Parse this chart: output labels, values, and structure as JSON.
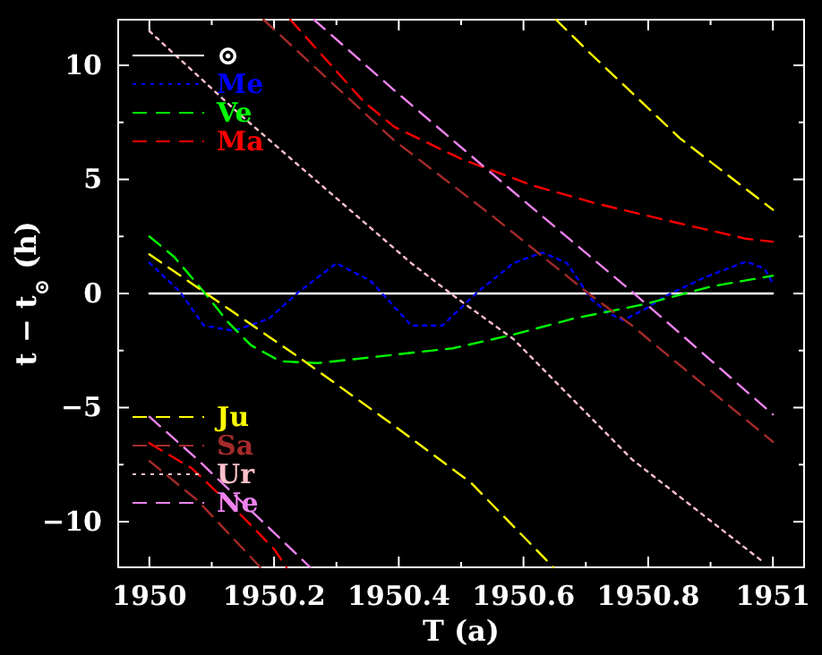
{
  "chart_data": {
    "type": "line",
    "xlabel": "T (a)",
    "ylabel": "t − t$_{⊙}$ (h)",
    "xlim": [
      1949.95,
      1951.05
    ],
    "ylim": [
      -12,
      12
    ],
    "xticks": [
      1950,
      {
        "value": 1950.1,
        "label": null
      },
      1950.2,
      {
        "value": 1950.3,
        "label": null
      },
      1950.4,
      {
        "value": 1950.5,
        "label": null
      },
      1950.6,
      {
        "value": 1950.7,
        "label": null
      },
      1950.8,
      {
        "value": 1950.9,
        "label": null
      },
      1951
    ],
    "yticks": [
      -10,
      {
        "value": -7.5,
        "label": null
      },
      -5,
      {
        "value": -2.5,
        "label": null
      },
      0,
      {
        "value": 2.5,
        "label": null
      },
      5,
      {
        "value": 7.5,
        "label": null
      },
      10
    ],
    "legend": "left",
    "grid": false,
    "series": [
      {
        "name": "⊙",
        "color": "#ffffff",
        "line_style": "solid",
        "x": [
          1950,
          1951
        ],
        "values": [
          0,
          0
        ]
      },
      {
        "name": "Me",
        "color": "#0000ff",
        "line_style": "dotted",
        "x": [
          1950,
          1950.049,
          1950.087,
          1950.135,
          1950.192,
          1950.24,
          1950.3,
          1950.355,
          1950.42,
          1950.47,
          1950.527,
          1950.584,
          1950.63,
          1950.67,
          1950.708,
          1950.736,
          1950.76,
          1950.794,
          1950.83,
          1950.89,
          1950.957,
          1950.986,
          1951
        ],
        "values": [
          1.35,
          0.08,
          -1.4,
          -1.64,
          -1.1,
          0.08,
          1.33,
          0.55,
          -1.4,
          -1.4,
          0.08,
          1.33,
          1.8,
          1.33,
          -0.23,
          -0.86,
          -1.17,
          -0.7,
          -0.08,
          0.7,
          1.4,
          1.1,
          0.45
        ]
      },
      {
        "name": "Ve",
        "color": "#00ff00",
        "line_style": "dashed",
        "x": [
          1950,
          1950.04,
          1950.087,
          1950.126,
          1950.163,
          1950.21,
          1950.27,
          1950.355,
          1950.42,
          1950.487,
          1950.584,
          1950.68,
          1950.794,
          1950.9,
          1951
        ],
        "values": [
          2.5,
          1.6,
          0.08,
          -1.25,
          -2.27,
          -2.97,
          -3.05,
          -2.8,
          -2.6,
          -2.4,
          -1.8,
          -1.1,
          -0.47,
          0.3,
          0.78
        ]
      },
      {
        "name": "Ma",
        "color": "#ff0000",
        "line_style": "dashed",
        "x": [
          1950,
          1950.068,
          1950.143,
          1950.2,
          1950.22,
          1950.223,
          1950.226,
          1950.344,
          1950.393,
          1950.5,
          1950.613,
          1950.716,
          1950.83,
          1950.957,
          1951
        ],
        "values": [
          -6.56,
          -7.66,
          -9.6,
          -11.2,
          -12,
          null,
          12,
          8.4,
          7.3,
          5.9,
          4.75,
          3.95,
          3.2,
          2.4,
          2.27
        ]
      },
      {
        "name": "Ju",
        "color": "#ffff00",
        "line_style": "dashed",
        "x": [
          1950,
          1950.087,
          1950.192,
          1950.24,
          1950.393,
          1950.516,
          1950.648,
          1950.65,
          1950.652,
          1950.708,
          1950.851,
          1951
        ],
        "values": [
          1.72,
          0.08,
          -1.9,
          -2.8,
          -5.8,
          -8.3,
          -12,
          null,
          12,
          10.5,
          6.8,
          3.67
        ]
      },
      {
        "name": "Sa",
        "color": "#a52a2a",
        "line_style": "dashed",
        "x": [
          1950,
          1950.077,
          1950.178,
          1950.18,
          1950.183,
          1950.393,
          1950.55,
          1950.708,
          1950.774,
          1950.8,
          1951
        ],
        "values": [
          -7.34,
          -9.06,
          -12,
          null,
          12,
          6.7,
          3.4,
          -0.08,
          -1.4,
          -2,
          -6.5
        ]
      },
      {
        "name": "Ur",
        "color": "#ffc0cb",
        "line_style": "dotted",
        "x": [
          1950,
          1950.143,
          1950.42,
          1950.487,
          1950.584,
          1950.774,
          1950.986
        ],
        "values": [
          11.5,
          7.9,
          1.33,
          -0.08,
          -2,
          -7.27,
          -11.8
        ]
      },
      {
        "name": "Ne",
        "color": "#ee82ee",
        "line_style": "dashed",
        "x": [
          1950,
          1950.077,
          1950.258,
          1950.261,
          1950.264,
          1950.393,
          1950.584,
          1950.774,
          1950.83,
          1951
        ],
        "values": [
          -5.4,
          -7.27,
          -12,
          null,
          12,
          8.9,
          4.45,
          0.08,
          -1.25,
          -5.3
        ]
      }
    ]
  }
}
